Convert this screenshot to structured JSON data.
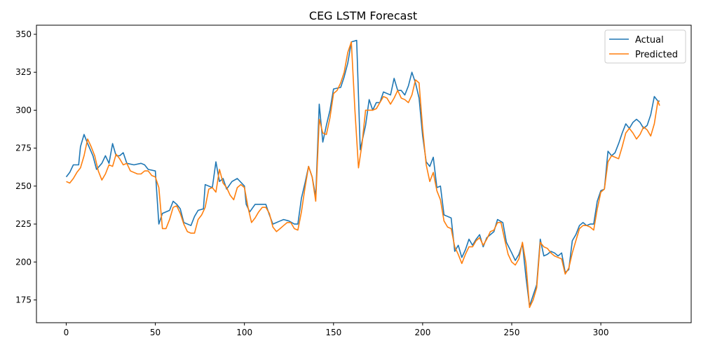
{
  "chart_data": {
    "type": "line",
    "title": "CEG LSTM Forecast",
    "xlabel": "",
    "ylabel": "",
    "xlim": [
      -16.7,
      350.7
    ],
    "ylim": [
      160,
      356
    ],
    "x_ticks": [
      0,
      50,
      100,
      150,
      200,
      250,
      300
    ],
    "y_ticks": [
      175,
      200,
      225,
      250,
      275,
      300,
      325,
      350
    ],
    "grid": false,
    "legend_position": "top-right",
    "series": [
      {
        "name": "Actual",
        "color": "#1f77b4",
        "points": [
          [
            0,
            256
          ],
          [
            2,
            259
          ],
          [
            4,
            264
          ],
          [
            7,
            264
          ],
          [
            8,
            276
          ],
          [
            10,
            284
          ],
          [
            12,
            278
          ],
          [
            15,
            270
          ],
          [
            17,
            261
          ],
          [
            20,
            265
          ],
          [
            22,
            270
          ],
          [
            24,
            265
          ],
          [
            26,
            278
          ],
          [
            28,
            270
          ],
          [
            30,
            270
          ],
          [
            32,
            272
          ],
          [
            34,
            265
          ],
          [
            38,
            264
          ],
          [
            42,
            265
          ],
          [
            44,
            264
          ],
          [
            46,
            261
          ],
          [
            50,
            260
          ],
          [
            52,
            225
          ],
          [
            54,
            232
          ],
          [
            58,
            234
          ],
          [
            60,
            240
          ],
          [
            62,
            238
          ],
          [
            64,
            235
          ],
          [
            66,
            226
          ],
          [
            70,
            224
          ],
          [
            72,
            230
          ],
          [
            74,
            234
          ],
          [
            77,
            235
          ],
          [
            78,
            251
          ],
          [
            82,
            249
          ],
          [
            84,
            266
          ],
          [
            86,
            253
          ],
          [
            88,
            255
          ],
          [
            90,
            248
          ],
          [
            93,
            253
          ],
          [
            96,
            255
          ],
          [
            100,
            250
          ],
          [
            101,
            238
          ],
          [
            103,
            233
          ],
          [
            106,
            238
          ],
          [
            112,
            238
          ],
          [
            114,
            231
          ],
          [
            116,
            225
          ],
          [
            120,
            227
          ],
          [
            122,
            228
          ],
          [
            125,
            227
          ],
          [
            128,
            225
          ],
          [
            130,
            225
          ],
          [
            132,
            242
          ],
          [
            134,
            252
          ],
          [
            136,
            263
          ],
          [
            138,
            256
          ],
          [
            140,
            243
          ],
          [
            142,
            304
          ],
          [
            144,
            279
          ],
          [
            146,
            290
          ],
          [
            148,
            300
          ],
          [
            150,
            314
          ],
          [
            154,
            315
          ],
          [
            156,
            322
          ],
          [
            158,
            331
          ],
          [
            160,
            345
          ],
          [
            163,
            346
          ],
          [
            165,
            274
          ],
          [
            168,
            290
          ],
          [
            170,
            307
          ],
          [
            172,
            300
          ],
          [
            174,
            305
          ],
          [
            176,
            305
          ],
          [
            178,
            312
          ],
          [
            182,
            310
          ],
          [
            184,
            321
          ],
          [
            186,
            313
          ],
          [
            188,
            313
          ],
          [
            190,
            310
          ],
          [
            192,
            316
          ],
          [
            194,
            325
          ],
          [
            196,
            318
          ],
          [
            198,
            308
          ],
          [
            200,
            283
          ],
          [
            202,
            266
          ],
          [
            204,
            263
          ],
          [
            206,
            269
          ],
          [
            208,
            249
          ],
          [
            210,
            250
          ],
          [
            212,
            231
          ],
          [
            216,
            229
          ],
          [
            218,
            207
          ],
          [
            220,
            211
          ],
          [
            222,
            203
          ],
          [
            224,
            208
          ],
          [
            226,
            215
          ],
          [
            228,
            211
          ],
          [
            230,
            215
          ],
          [
            232,
            218
          ],
          [
            234,
            210
          ],
          [
            236,
            216
          ],
          [
            240,
            220
          ],
          [
            242,
            228
          ],
          [
            245,
            226
          ],
          [
            247,
            213
          ],
          [
            250,
            206
          ],
          [
            252,
            201
          ],
          [
            254,
            205
          ],
          [
            256,
            212
          ],
          [
            258,
            190
          ],
          [
            260,
            171
          ],
          [
            262,
            178
          ],
          [
            264,
            185
          ],
          [
            266,
            215
          ],
          [
            268,
            204
          ],
          [
            270,
            205
          ],
          [
            272,
            207
          ],
          [
            274,
            206
          ],
          [
            276,
            204
          ],
          [
            278,
            206
          ],
          [
            280,
            193
          ],
          [
            282,
            195
          ],
          [
            284,
            214
          ],
          [
            286,
            218
          ],
          [
            288,
            224
          ],
          [
            290,
            226
          ],
          [
            292,
            224
          ],
          [
            294,
            225
          ],
          [
            296,
            225
          ],
          [
            298,
            240
          ],
          [
            300,
            247
          ],
          [
            302,
            248
          ],
          [
            304,
            273
          ],
          [
            306,
            270
          ],
          [
            308,
            272
          ],
          [
            310,
            278
          ],
          [
            312,
            285
          ],
          [
            314,
            291
          ],
          [
            316,
            288
          ],
          [
            318,
            292
          ],
          [
            320,
            294
          ],
          [
            322,
            292
          ],
          [
            324,
            288
          ],
          [
            326,
            290
          ],
          [
            328,
            297
          ],
          [
            330,
            309
          ],
          [
            332,
            306
          ],
          [
            333,
            306
          ]
        ]
      },
      {
        "name": "Predicted",
        "color": "#ff7f0e",
        "points": [
          [
            0,
            253
          ],
          [
            2,
            252
          ],
          [
            4,
            255
          ],
          [
            6,
            259
          ],
          [
            8,
            262
          ],
          [
            10,
            270
          ],
          [
            12,
            281
          ],
          [
            14,
            276
          ],
          [
            16,
            270
          ],
          [
            18,
            260
          ],
          [
            20,
            254
          ],
          [
            22,
            258
          ],
          [
            24,
            264
          ],
          [
            26,
            263
          ],
          [
            28,
            271
          ],
          [
            30,
            268
          ],
          [
            32,
            264
          ],
          [
            34,
            265
          ],
          [
            36,
            260
          ],
          [
            40,
            258
          ],
          [
            42,
            258
          ],
          [
            44,
            260
          ],
          [
            46,
            260
          ],
          [
            48,
            257
          ],
          [
            50,
            256
          ],
          [
            52,
            249
          ],
          [
            54,
            222
          ],
          [
            56,
            222
          ],
          [
            58,
            228
          ],
          [
            60,
            236
          ],
          [
            62,
            237
          ],
          [
            64,
            232
          ],
          [
            66,
            225
          ],
          [
            68,
            220
          ],
          [
            70,
            219
          ],
          [
            72,
            219
          ],
          [
            74,
            228
          ],
          [
            76,
            231
          ],
          [
            78,
            236
          ],
          [
            80,
            248
          ],
          [
            82,
            249
          ],
          [
            84,
            246
          ],
          [
            86,
            261
          ],
          [
            88,
            252
          ],
          [
            90,
            249
          ],
          [
            92,
            244
          ],
          [
            94,
            241
          ],
          [
            96,
            249
          ],
          [
            98,
            251
          ],
          [
            100,
            249
          ],
          [
            102,
            236
          ],
          [
            104,
            226
          ],
          [
            106,
            229
          ],
          [
            108,
            233
          ],
          [
            110,
            236
          ],
          [
            112,
            236
          ],
          [
            114,
            232
          ],
          [
            116,
            223
          ],
          [
            118,
            220
          ],
          [
            120,
            222
          ],
          [
            122,
            224
          ],
          [
            124,
            226
          ],
          [
            126,
            226
          ],
          [
            128,
            222
          ],
          [
            130,
            221
          ],
          [
            132,
            233
          ],
          [
            134,
            249
          ],
          [
            136,
            263
          ],
          [
            138,
            256
          ],
          [
            140,
            240
          ],
          [
            142,
            294
          ],
          [
            144,
            285
          ],
          [
            146,
            284
          ],
          [
            148,
            295
          ],
          [
            150,
            311
          ],
          [
            152,
            313
          ],
          [
            154,
            318
          ],
          [
            156,
            325
          ],
          [
            158,
            338
          ],
          [
            160,
            345
          ],
          [
            162,
            300
          ],
          [
            164,
            262
          ],
          [
            166,
            278
          ],
          [
            168,
            300
          ],
          [
            170,
            300
          ],
          [
            172,
            300
          ],
          [
            174,
            301
          ],
          [
            176,
            305
          ],
          [
            178,
            309
          ],
          [
            180,
            308
          ],
          [
            182,
            304
          ],
          [
            184,
            308
          ],
          [
            186,
            313
          ],
          [
            188,
            308
          ],
          [
            190,
            307
          ],
          [
            192,
            305
          ],
          [
            194,
            310
          ],
          [
            196,
            320
          ],
          [
            198,
            318
          ],
          [
            200,
            288
          ],
          [
            202,
            264
          ],
          [
            204,
            253
          ],
          [
            206,
            259
          ],
          [
            208,
            247
          ],
          [
            210,
            241
          ],
          [
            212,
            227
          ],
          [
            214,
            223
          ],
          [
            216,
            222
          ],
          [
            218,
            210
          ],
          [
            220,
            205
          ],
          [
            222,
            199
          ],
          [
            224,
            205
          ],
          [
            226,
            210
          ],
          [
            228,
            210
          ],
          [
            230,
            214
          ],
          [
            232,
            216
          ],
          [
            234,
            211
          ],
          [
            236,
            215
          ],
          [
            238,
            220
          ],
          [
            240,
            221
          ],
          [
            242,
            226
          ],
          [
            244,
            226
          ],
          [
            246,
            215
          ],
          [
            248,
            205
          ],
          [
            250,
            200
          ],
          [
            252,
            198
          ],
          [
            254,
            202
          ],
          [
            256,
            213
          ],
          [
            258,
            199
          ],
          [
            260,
            170
          ],
          [
            262,
            175
          ],
          [
            264,
            183
          ],
          [
            266,
            213
          ],
          [
            268,
            210
          ],
          [
            270,
            209
          ],
          [
            272,
            206
          ],
          [
            274,
            204
          ],
          [
            276,
            203
          ],
          [
            278,
            202
          ],
          [
            280,
            192
          ],
          [
            282,
            196
          ],
          [
            284,
            206
          ],
          [
            286,
            214
          ],
          [
            288,
            222
          ],
          [
            290,
            224
          ],
          [
            292,
            224
          ],
          [
            294,
            223
          ],
          [
            296,
            221
          ],
          [
            298,
            235
          ],
          [
            300,
            246
          ],
          [
            302,
            248
          ],
          [
            304,
            266
          ],
          [
            306,
            270
          ],
          [
            308,
            269
          ],
          [
            310,
            268
          ],
          [
            312,
            276
          ],
          [
            314,
            285
          ],
          [
            316,
            288
          ],
          [
            318,
            285
          ],
          [
            320,
            281
          ],
          [
            322,
            284
          ],
          [
            324,
            289
          ],
          [
            326,
            287
          ],
          [
            328,
            283
          ],
          [
            330,
            291
          ],
          [
            332,
            306
          ],
          [
            333,
            303
          ]
        ]
      }
    ]
  }
}
